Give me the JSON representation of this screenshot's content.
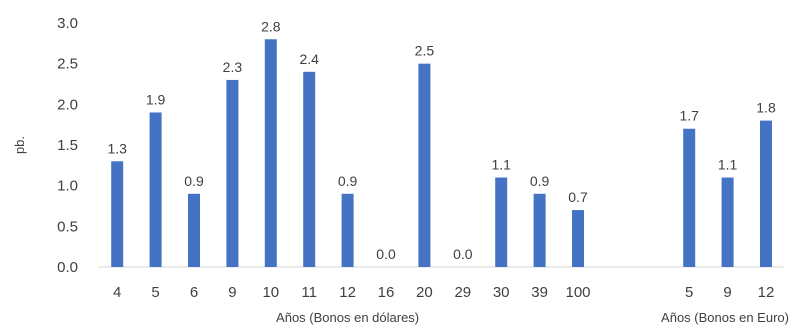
{
  "chart_data": {
    "type": "bar",
    "ylabel": "pb.",
    "ylim": [
      0,
      3.0
    ],
    "yticks": [
      "0.0",
      "0.5",
      "1.0",
      "1.5",
      "2.0",
      "2.5",
      "3.0"
    ],
    "gridlines": false,
    "bar_color": "#4472C4",
    "groups": [
      {
        "xlabel": "Años (Bonos en dólares)",
        "categories": [
          "4",
          "5",
          "6",
          "9",
          "10",
          "11",
          "12",
          "16",
          "20",
          "29",
          "30",
          "39",
          "100"
        ],
        "values": [
          1.3,
          1.9,
          0.9,
          2.3,
          2.8,
          2.4,
          0.9,
          0.0,
          2.5,
          0.0,
          1.1,
          0.9,
          0.7
        ],
        "value_labels": [
          "1.3",
          "1.9",
          "0.9",
          "2.3",
          "2.8",
          "2.4",
          "0.9",
          "0.0",
          "2.5",
          "0.0",
          "1.1",
          "0.9",
          "0.7"
        ]
      },
      {
        "xlabel": "Años (Bonos en Euro)",
        "categories": [
          "5",
          "9",
          "12"
        ],
        "values": [
          1.7,
          1.1,
          1.8
        ],
        "value_labels": [
          "1.7",
          "1.1",
          "1.8"
        ]
      }
    ]
  }
}
